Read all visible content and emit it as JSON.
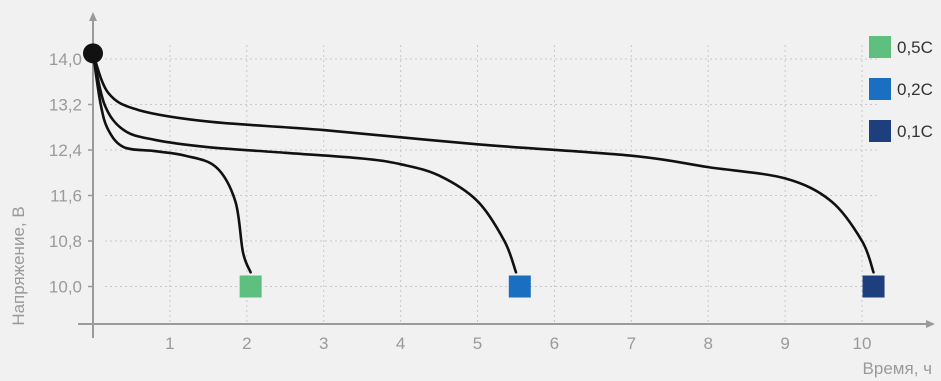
{
  "chart_data": {
    "type": "line",
    "xlabel": "Время, ч",
    "ylabel": "Напряжение, В",
    "xlim": [
      0,
      11
    ],
    "ylim": [
      9.2,
      14.9
    ],
    "x_ticks": [
      "1",
      "2",
      "3",
      "4",
      "5",
      "6",
      "7",
      "8",
      "9",
      "10"
    ],
    "y_ticks": [
      "14,0",
      "13,2",
      "12,4",
      "11,6",
      "10,8",
      "10,0"
    ],
    "y_tick_values": [
      14.0,
      13.2,
      12.4,
      11.6,
      10.8,
      10.0
    ],
    "grid": true,
    "legend_position": "top-right",
    "start_point": {
      "x": 0,
      "y": 14.1
    },
    "series": [
      {
        "name": "0,5C",
        "color": "#5fbf7f",
        "points": [
          [
            0,
            14.1
          ],
          [
            0.1,
            13.2
          ],
          [
            0.2,
            12.75
          ],
          [
            0.4,
            12.45
          ],
          [
            0.8,
            12.38
          ],
          [
            1.2,
            12.3
          ],
          [
            1.6,
            12.1
          ],
          [
            1.85,
            11.5
          ],
          [
            1.95,
            10.6
          ],
          [
            2.05,
            10.25
          ]
        ],
        "end": {
          "x": 2.05,
          "y": 10.0
        }
      },
      {
        "name": "0,2C",
        "color": "#1a6fc0",
        "points": [
          [
            0,
            14.1
          ],
          [
            0.15,
            13.2
          ],
          [
            0.4,
            12.75
          ],
          [
            0.8,
            12.58
          ],
          [
            1.5,
            12.45
          ],
          [
            2.5,
            12.35
          ],
          [
            3.5,
            12.25
          ],
          [
            4.0,
            12.15
          ],
          [
            4.5,
            11.95
          ],
          [
            5.0,
            11.5
          ],
          [
            5.35,
            10.8
          ],
          [
            5.5,
            10.25
          ]
        ],
        "end": {
          "x": 5.55,
          "y": 10.0
        }
      },
      {
        "name": "0,1C",
        "color": "#1d3f7e",
        "points": [
          [
            0,
            14.1
          ],
          [
            0.2,
            13.4
          ],
          [
            0.6,
            13.1
          ],
          [
            1.5,
            12.9
          ],
          [
            3,
            12.75
          ],
          [
            5,
            12.5
          ],
          [
            7,
            12.3
          ],
          [
            8,
            12.1
          ],
          [
            9,
            11.9
          ],
          [
            9.6,
            11.5
          ],
          [
            10,
            10.8
          ],
          [
            10.15,
            10.25
          ]
        ],
        "end": {
          "x": 10.15,
          "y": 10.0
        }
      }
    ]
  }
}
